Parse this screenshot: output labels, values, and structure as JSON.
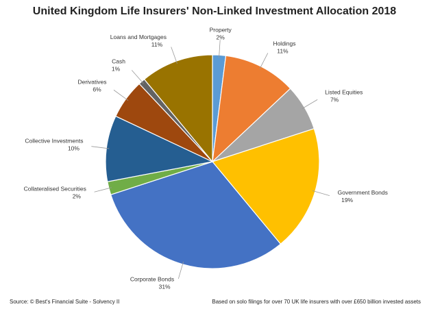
{
  "chart_data": {
    "type": "pie",
    "title": "United Kingdom Life Insurers' Non-Linked Investment Allocation 2018",
    "categories": [
      "Property",
      "Holdings",
      "Listed Equities",
      "Government Bonds",
      "Corporate Bonds",
      "Collateralised Securities",
      "Collective Investments",
      "Derivatives",
      "Cash",
      "Loans and Mortgages"
    ],
    "values": [
      2,
      11,
      7,
      19,
      31,
      2,
      10,
      6,
      1,
      11
    ],
    "value_labels": [
      "2%",
      "11%",
      "7%",
      "19%",
      "31%",
      "2%",
      "10%",
      "6%",
      "1%",
      "11%"
    ],
    "colors": [
      "#5b9bd5",
      "#ed7d31",
      "#a5a5a5",
      "#ffc000",
      "#4472c4",
      "#70ad47",
      "#255e91",
      "#9e480e",
      "#636363",
      "#997300"
    ],
    "source": "Source: © Best's Financial Suite - Solvency II",
    "note": "Based on solo filings for over 70 UK life insurers with over £650 billion invested assets"
  }
}
